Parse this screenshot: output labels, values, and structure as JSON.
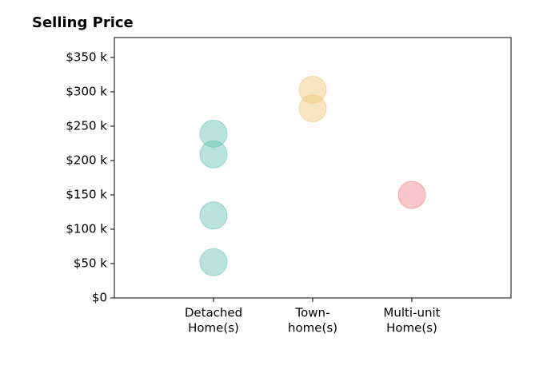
{
  "chart_data": {
    "type": "scatter",
    "title": "Selling Price",
    "categories": [
      [
        "Detached",
        "Home(s)"
      ],
      [
        "Town-",
        "home(s)"
      ],
      [
        "Multi-unit",
        "Home(s)"
      ]
    ],
    "x": [
      0,
      0,
      0,
      0,
      1,
      1,
      2
    ],
    "values": [
      239,
      209,
      120,
      52,
      303,
      276,
      150
    ],
    "category_colors": [
      "#66c2b4",
      "#f0c878",
      "#f0808c"
    ],
    "xlim": [
      -1,
      3
    ],
    "ylim": [
      0,
      379
    ],
    "yticks": [
      {
        "value": 0,
        "label": "$0"
      },
      {
        "value": 50,
        "label": "$50 k"
      },
      {
        "value": 100,
        "label": "$100 k"
      },
      {
        "value": 150,
        "label": "$150 k"
      },
      {
        "value": 200,
        "label": "$200 k"
      },
      {
        "value": 250,
        "label": "$250 k"
      },
      {
        "value": 300,
        "label": "$300 k"
      },
      {
        "value": 350,
        "label": "$350 k"
      }
    ],
    "grid": false
  }
}
